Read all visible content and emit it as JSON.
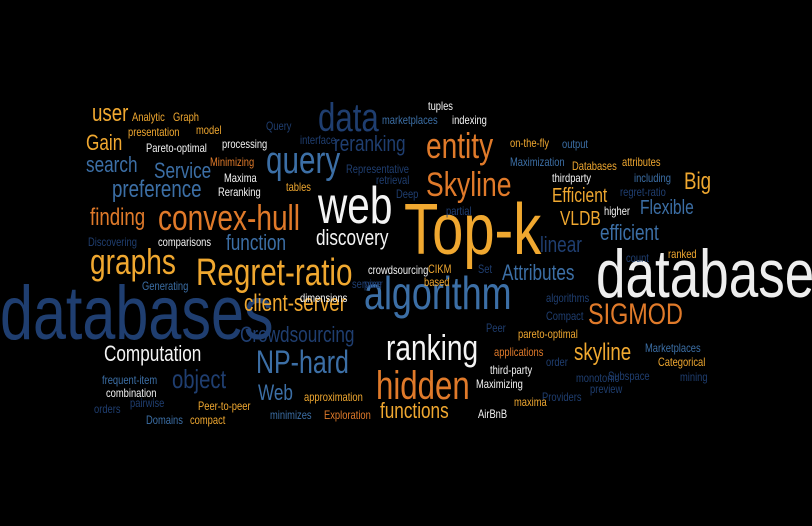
{
  "colors": {
    "background": "#000000",
    "orange": "#E07A2A",
    "gold": "#F0A830",
    "navy": "#1F3E70",
    "steel": "#3C6FA6",
    "sky": "#5A90C8",
    "white": "#F4F4F4"
  },
  "words": [
    {
      "text": "database",
      "color": "#EEEEEE"
    },
    {
      "text": "databases",
      "color": "#1F3E70"
    },
    {
      "text": "Top-k",
      "color": "#F0A830"
    },
    {
      "text": "algorithm",
      "color": "#3C6FA6"
    },
    {
      "text": "web",
      "color": "#F4F4F4"
    },
    {
      "text": "Regret-ratio",
      "color": "#F0A830"
    },
    {
      "text": "convex-hull",
      "color": "#E07A2A"
    },
    {
      "text": "query",
      "color": "#3C6FA6"
    },
    {
      "text": "entity",
      "color": "#E07A2A"
    },
    {
      "text": "hidden",
      "color": "#E07A2A"
    },
    {
      "text": "Skyline",
      "color": "#E07A2A"
    },
    {
      "text": "ranking",
      "color": "#F4F4F4"
    },
    {
      "text": "data",
      "color": "#1F3E70"
    },
    {
      "text": "graphs",
      "color": "#F0A830"
    },
    {
      "text": "SIGMOD",
      "color": "#E07A2A"
    },
    {
      "text": "NP-hard",
      "color": "#3C6FA6"
    },
    {
      "text": "client-server",
      "color": "#F0A830"
    },
    {
      "text": "discovery",
      "color": "#F4F4F4"
    },
    {
      "text": "Crowdsourcing",
      "color": "#1F3E70"
    },
    {
      "text": "functions",
      "color": "#F0A830"
    },
    {
      "text": "skyline",
      "color": "#F0A830"
    },
    {
      "text": "preference",
      "color": "#3C6FA6"
    },
    {
      "text": "Service",
      "color": "#3C6FA6"
    },
    {
      "text": "search",
      "color": "#3C6FA6"
    },
    {
      "text": "finding",
      "color": "#E07A2A"
    },
    {
      "text": "function",
      "color": "#3C6FA6"
    },
    {
      "text": "Attributes",
      "color": "#3C6FA6"
    },
    {
      "text": "Efficient",
      "color": "#F0A830"
    },
    {
      "text": "efficient",
      "color": "#3C6FA6"
    },
    {
      "text": "Flexible",
      "color": "#3C6FA6"
    },
    {
      "text": "Big",
      "color": "#F0A830"
    },
    {
      "text": "linear",
      "color": "#1F3E70"
    },
    {
      "text": "VLDB",
      "color": "#F0A830"
    },
    {
      "text": "reranking",
      "color": "#1F3E70"
    },
    {
      "text": "user",
      "color": "#F0A830"
    },
    {
      "text": "Gain",
      "color": "#F0A830"
    },
    {
      "text": "Computation",
      "color": "#F4F4F4"
    },
    {
      "text": "object",
      "color": "#1F3E70"
    },
    {
      "text": "Web",
      "color": "#3C6FA6"
    },
    {
      "text": "Analytic",
      "color": "#F0A830"
    },
    {
      "text": "Graph",
      "color": "#F0A830"
    },
    {
      "text": "presentation",
      "color": "#F0A830"
    },
    {
      "text": "model",
      "color": "#F0A830"
    },
    {
      "text": "Query",
      "color": "#1F3E70"
    },
    {
      "text": "interface",
      "color": "#1F3E70"
    },
    {
      "text": "marketplaces",
      "color": "#3C6FA6"
    },
    {
      "text": "indexing",
      "color": "#F4F4F4"
    },
    {
      "text": "tuples",
      "color": "#F4F4F4"
    },
    {
      "text": "Pareto-optimal",
      "color": "#F4F4F4"
    },
    {
      "text": "processing",
      "color": "#F4F4F4"
    },
    {
      "text": "Minimizing",
      "color": "#E07A2A"
    },
    {
      "text": "Maxima",
      "color": "#F4F4F4"
    },
    {
      "text": "Reranking",
      "color": "#F4F4F4"
    },
    {
      "text": "tables",
      "color": "#F0A830"
    },
    {
      "text": "Representative",
      "color": "#1F3E70"
    },
    {
      "text": "retrieval",
      "color": "#1F3E70"
    },
    {
      "text": "Deep",
      "color": "#1F3E70"
    },
    {
      "text": "partial",
      "color": "#1F3E70"
    },
    {
      "text": "on-the-fly",
      "color": "#F0A830"
    },
    {
      "text": "output",
      "color": "#3C6FA6"
    },
    {
      "text": "Maximization",
      "color": "#3C6FA6"
    },
    {
      "text": "Databases",
      "color": "#F0A830"
    },
    {
      "text": "attributes",
      "color": "#F0A830"
    },
    {
      "text": "thirdparty",
      "color": "#F4F4F4"
    },
    {
      "text": "including",
      "color": "#3C6FA6"
    },
    {
      "text": "regret-ratio",
      "color": "#1F3E70"
    },
    {
      "text": "higher",
      "color": "#F4F4F4"
    },
    {
      "text": "count",
      "color": "#1F3E70"
    },
    {
      "text": "ranked",
      "color": "#F0A830"
    },
    {
      "text": "Discovering",
      "color": "#1F3E70"
    },
    {
      "text": "comparisons",
      "color": "#F4F4F4"
    },
    {
      "text": "Generating",
      "color": "#3C6FA6"
    },
    {
      "text": "crowdsourcing",
      "color": "#F4F4F4"
    },
    {
      "text": "CIKM",
      "color": "#F0A830"
    },
    {
      "text": "Set",
      "color": "#1F3E70"
    },
    {
      "text": "service",
      "color": "#1F3E70"
    },
    {
      "text": "peer",
      "color": "#1F3E70"
    },
    {
      "text": "based",
      "color": "#F0A830"
    },
    {
      "text": "dimensions",
      "color": "#F4F4F4"
    },
    {
      "text": "algorithms",
      "color": "#1F3E70"
    },
    {
      "text": "Compact",
      "color": "#1F3E70"
    },
    {
      "text": "pareto-optimal",
      "color": "#F0A830"
    },
    {
      "text": "Peer",
      "color": "#1F3E70"
    },
    {
      "text": "applications",
      "color": "#E07A2A"
    },
    {
      "text": "third-party",
      "color": "#F4F4F4"
    },
    {
      "text": "order",
      "color": "#1F3E70"
    },
    {
      "text": "Maximizing",
      "color": "#F4F4F4"
    },
    {
      "text": "monotonic",
      "color": "#1F3E70"
    },
    {
      "text": "Subspace",
      "color": "#1F3E70"
    },
    {
      "text": "preview",
      "color": "#1F3E70"
    },
    {
      "text": "Marketplaces",
      "color": "#3C6FA6"
    },
    {
      "text": "Categorical",
      "color": "#F0A830"
    },
    {
      "text": "mining",
      "color": "#1F3E70"
    },
    {
      "text": "Providers",
      "color": "#1F3E70"
    },
    {
      "text": "maxima",
      "color": "#F0A830"
    },
    {
      "text": "frequent-item",
      "color": "#3C6FA6"
    },
    {
      "text": "combination",
      "color": "#F4F4F4"
    },
    {
      "text": "orders",
      "color": "#1F3E70"
    },
    {
      "text": "pairwise",
      "color": "#1F3E70"
    },
    {
      "text": "Domains",
      "color": "#3C6FA6"
    },
    {
      "text": "compact",
      "color": "#F0A830"
    },
    {
      "text": "Peer-to-peer",
      "color": "#F0A830"
    },
    {
      "text": "minimizes",
      "color": "#3C6FA6"
    },
    {
      "text": "approximation",
      "color": "#F0A830"
    },
    {
      "text": "Exploration",
      "color": "#E07A2A"
    },
    {
      "text": "AirBnB",
      "color": "#F4F4F4"
    }
  ]
}
